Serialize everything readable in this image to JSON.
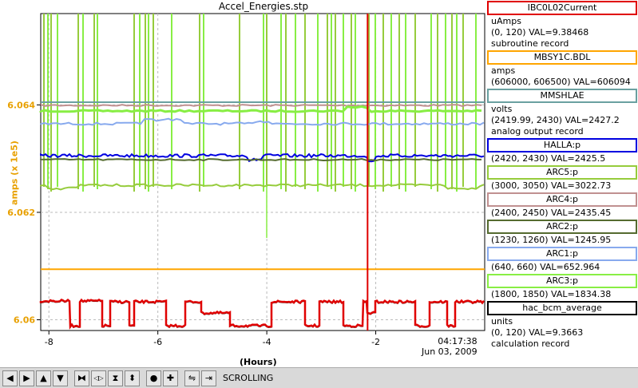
{
  "plot": {
    "title": "Accel_Energies.stp",
    "y_label": "amps (x 1e5)",
    "x_label": "(Hours)"
  },
  "time_readout": {
    "time": "04:17:38",
    "date": "Jun 03, 2009"
  },
  "chart_data": {
    "type": "line",
    "title": "Accel_Energies.stp",
    "xlabel": "(Hours)",
    "ylabel": "amps (x 1e5)",
    "xlim": [
      -8.15,
      0
    ],
    "ylim": [
      6.0598,
      6.0657
    ],
    "x_ticks": [
      "-8",
      "-6",
      "-4",
      "-2"
    ],
    "y_ticks": [
      "6.06",
      "6.062",
      "6.064"
    ],
    "grid": true,
    "cursor_x": -2.15,
    "mbsy1c_value": 6.06094,
    "series_colors": {
      "IBC0L02Current": "#e00000",
      "MBSY1C.BDL": "#ffa500",
      "MMSHLAE": "#6aa0a0",
      "HALLA:p": "#0000e0",
      "ARC5:p": "#96cc3c",
      "ARC4:p": "#c09090",
      "ARC2:p": "#556b2f",
      "ARC1:p": "#88aaee",
      "ARC3:p": "#88ee44",
      "hac_bcm_average": "#000000"
    }
  },
  "legend": [
    {
      "name": "IBC0L02Current",
      "color": "#e00000",
      "lines": [
        "uAmps",
        "(0, 120) VAL=9.38468",
        "subroutine record"
      ]
    },
    {
      "name": "MBSY1C.BDL",
      "color": "#ffa500",
      "lines": [
        "amps",
        "(606000, 606500) VAL=606094"
      ]
    },
    {
      "name": "MMSHLAE",
      "color": "#6aa0a0",
      "lines": [
        "volts",
        "(2419.99, 2430) VAL=2427.2",
        "analog output record"
      ]
    },
    {
      "name": "HALLA:p",
      "color": "#0000e0",
      "lines": [
        "(2420, 2430) VAL=2425.5"
      ]
    },
    {
      "name": "ARC5:p",
      "color": "#96cc3c",
      "lines": [
        "(3000, 3050) VAL=3022.73"
      ]
    },
    {
      "name": "ARC4:p",
      "color": "#c09090",
      "lines": [
        "(2400, 2450) VAL=2435.45"
      ]
    },
    {
      "name": "ARC2:p",
      "color": "#556b2f",
      "lines": [
        "(1230, 1260) VAL=1245.95"
      ]
    },
    {
      "name": "ARC1:p",
      "color": "#88aaee",
      "lines": [
        "(640, 660) VAL=652.964"
      ]
    },
    {
      "name": "ARC3:p",
      "color": "#88ee44",
      "lines": [
        "(1800, 1850) VAL=1834.38"
      ]
    },
    {
      "name": "hac_bcm_average",
      "color": "#000000",
      "lines": [
        "units",
        "(0, 120) VAL=9.3663",
        "calculation record"
      ]
    }
  ],
  "toolbar": {
    "buttons": [
      {
        "icon": "pan-left-icon",
        "glyph": "◀"
      },
      {
        "icon": "pan-right-icon",
        "glyph": "▶"
      },
      {
        "icon": "pan-up-icon",
        "glyph": "▲"
      },
      {
        "icon": "pan-down-icon",
        "glyph": "▼"
      },
      {
        "icon": "zoom-in-x-icon",
        "glyph": "⧓"
      },
      {
        "icon": "zoom-out-x-icon",
        "glyph": "◁▷"
      },
      {
        "icon": "zoom-in-y-icon",
        "glyph": "⧗"
      },
      {
        "icon": "zoom-out-y-icon",
        "glyph": "⬍"
      },
      {
        "icon": "record-icon",
        "glyph": "●"
      },
      {
        "icon": "add-trace-icon",
        "glyph": "✚"
      },
      {
        "icon": "autoscale-icon",
        "glyph": "⇋"
      },
      {
        "icon": "jump-end-icon",
        "glyph": "⇥"
      }
    ],
    "status": "SCROLLING"
  }
}
